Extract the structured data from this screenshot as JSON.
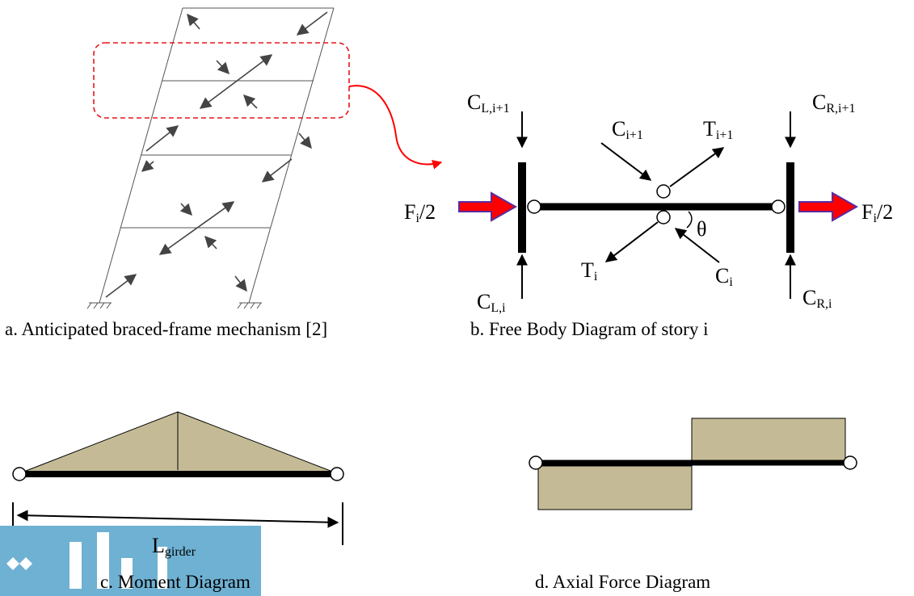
{
  "panel_a": {
    "caption": "a. Anticipated braced-frame mechanism [2]"
  },
  "panel_b": {
    "caption": "b. Free Body Diagram of story i",
    "labels": {
      "f_left": "F",
      "f_left_sub": "i",
      "f_left_tail": "/2",
      "f_right": "F",
      "f_right_sub": "i",
      "f_right_tail": "/2",
      "cl_top": "C",
      "cl_top_sub": "L,i+1",
      "cr_top": "C",
      "cr_top_sub": "R,i+1",
      "cl_bot": "C",
      "cl_bot_sub": "L,i",
      "cr_bot": "C",
      "cr_bot_sub": "R,i",
      "c_upper": "C",
      "c_upper_sub": "i+1",
      "t_upper": "T",
      "t_upper_sub": "i+1",
      "t_lower": "T",
      "t_lower_sub": "i",
      "c_lower": "C",
      "c_lower_sub": "i",
      "theta": "θ"
    }
  },
  "panel_c": {
    "caption": "c. Moment Diagram",
    "length_label": "L",
    "length_sub": "girder"
  },
  "panel_d": {
    "caption": "d. Axial Force Diagram"
  },
  "colors": {
    "fill": "#c4bb96",
    "arrow_red": "#ff0000",
    "arrow_outline": "#5a2ca0",
    "dash_red": "#e8141c",
    "logo_bg": "#6fb1d3"
  }
}
